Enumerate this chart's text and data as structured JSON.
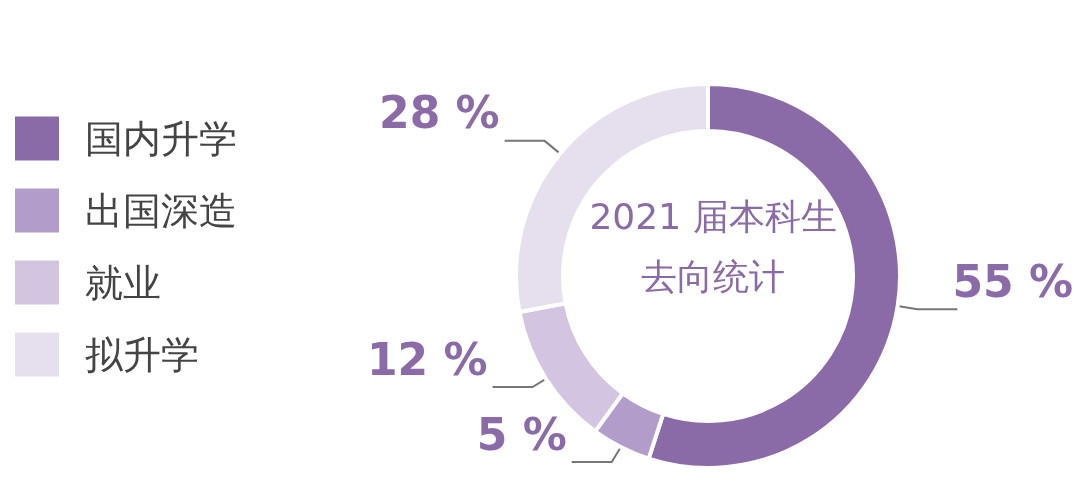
{
  "chart_data": {
    "type": "donut",
    "title": "2021 届本科生去向统计",
    "categories": [
      "国内升学",
      "出国深造",
      "就业",
      "拟升学"
    ],
    "values": [
      55,
      5,
      12,
      28
    ],
    "colors": [
      "#8b6aa8",
      "#b29cc9",
      "#d3c5e1",
      "#e6e0ee"
    ],
    "value_labels": [
      "55 %",
      "5 %",
      "12 %",
      "28 %"
    ],
    "legend": "left"
  }
}
